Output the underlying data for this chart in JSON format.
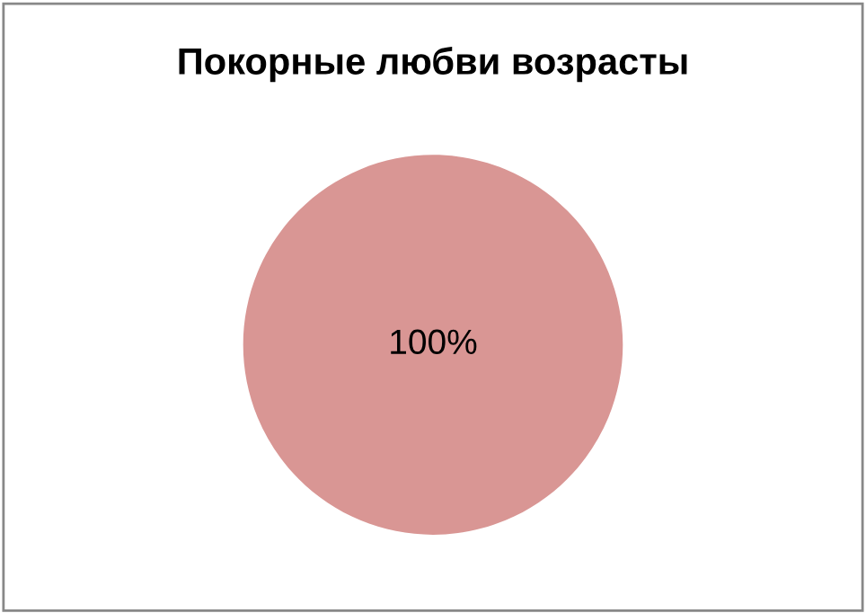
{
  "chart_data": {
    "type": "pie",
    "title": "Покорные любви возрасты",
    "categories": [
      null
    ],
    "values": [
      100
    ],
    "colors": [
      "#d99694"
    ],
    "value_labels": [
      "100%"
    ]
  }
}
